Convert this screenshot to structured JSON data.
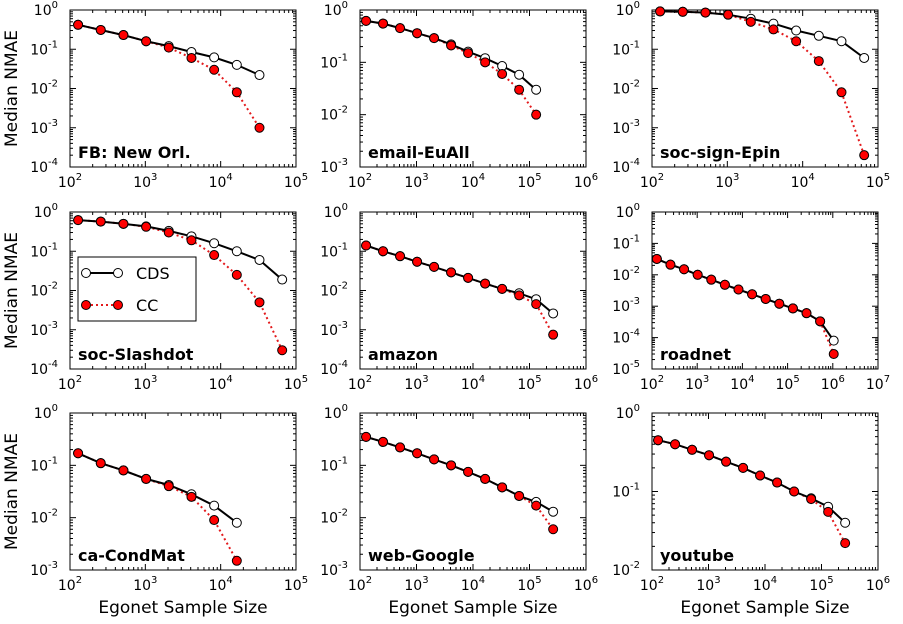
{
  "colors": {
    "cds": "#000000",
    "cc": "#e31a1c",
    "cds_marker": "#ffffff",
    "cc_marker": "#ff0000"
  },
  "legend": {
    "items": [
      {
        "key": "cds",
        "label": "CDS"
      },
      {
        "key": "cc",
        "label": "CC"
      }
    ],
    "location": "panel 4, center-left"
  },
  "chart_data": [
    {
      "type": "line",
      "title": "FB: New Orl.",
      "xlabel": "",
      "ylabel": "Median NMAE",
      "xscale": "log",
      "yscale": "log",
      "xlim": [
        100,
        100000
      ],
      "ylim": [
        0.0001,
        1
      ],
      "xtick_exps": [
        2,
        3,
        4,
        5
      ],
      "ytick_exps": [
        -4,
        -3,
        -2,
        -1,
        0
      ],
      "series": [
        {
          "name": "CDS",
          "x": [
            128,
            256,
            512,
            1024,
            2048,
            4096,
            8192,
            16384,
            32768
          ],
          "y": [
            0.42,
            0.31,
            0.23,
            0.16,
            0.12,
            0.085,
            0.062,
            0.04,
            0.022
          ]
        },
        {
          "name": "CC",
          "x": [
            128,
            256,
            512,
            1024,
            2048,
            4096,
            8192,
            16384,
            32768
          ],
          "y": [
            0.42,
            0.31,
            0.23,
            0.16,
            0.11,
            0.06,
            0.03,
            0.008,
            0.001
          ]
        }
      ]
    },
    {
      "type": "line",
      "title": "email-EuAll",
      "xlabel": "",
      "ylabel": "",
      "xscale": "log",
      "yscale": "log",
      "xlim": [
        100,
        1000000
      ],
      "ylim": [
        0.001,
        1
      ],
      "xtick_exps": [
        2,
        3,
        4,
        5,
        6
      ],
      "ytick_exps": [
        -3,
        -2,
        -1,
        0
      ],
      "series": [
        {
          "name": "CDS",
          "x": [
            128,
            256,
            512,
            1024,
            2048,
            4096,
            8192,
            16384,
            32768,
            65536,
            131072
          ],
          "y": [
            0.62,
            0.55,
            0.45,
            0.36,
            0.29,
            0.22,
            0.16,
            0.12,
            0.085,
            0.058,
            0.03
          ]
        },
        {
          "name": "CC",
          "x": [
            128,
            256,
            512,
            1024,
            2048,
            4096,
            8192,
            16384,
            32768,
            65536,
            131072
          ],
          "y": [
            0.62,
            0.55,
            0.45,
            0.36,
            0.29,
            0.21,
            0.15,
            0.1,
            0.06,
            0.03,
            0.01
          ]
        }
      ]
    },
    {
      "type": "line",
      "title": "soc-sign-Epin",
      "xlabel": "",
      "ylabel": "",
      "xscale": "log",
      "yscale": "log",
      "xlim": [
        100,
        100000
      ],
      "ylim": [
        0.0001,
        1
      ],
      "xtick_exps": [
        2,
        3,
        4,
        5
      ],
      "ytick_exps": [
        -4,
        -3,
        -2,
        -1,
        0
      ],
      "series": [
        {
          "name": "CDS",
          "x": [
            128,
            256,
            512,
            1024,
            2048,
            4096,
            8192,
            16384,
            32768,
            65536
          ],
          "y": [
            0.92,
            0.9,
            0.86,
            0.76,
            0.6,
            0.45,
            0.3,
            0.22,
            0.16,
            0.06
          ]
        },
        {
          "name": "CC",
          "x": [
            128,
            256,
            512,
            1024,
            2048,
            4096,
            8192,
            16384,
            32768,
            65536
          ],
          "y": [
            0.92,
            0.9,
            0.86,
            0.76,
            0.5,
            0.32,
            0.16,
            0.05,
            0.008,
            0.0002
          ]
        }
      ]
    },
    {
      "type": "line",
      "title": "soc-Slashdot",
      "xlabel": "",
      "ylabel": "Median NMAE",
      "xscale": "log",
      "yscale": "log",
      "xlim": [
        100,
        100000
      ],
      "ylim": [
        0.0001,
        1
      ],
      "xtick_exps": [
        2,
        3,
        4,
        5
      ],
      "ytick_exps": [
        -4,
        -3,
        -2,
        -1,
        0
      ],
      "series": [
        {
          "name": "CDS",
          "x": [
            128,
            256,
            512,
            1024,
            2048,
            4096,
            8192,
            16384,
            32768,
            65536
          ],
          "y": [
            0.62,
            0.57,
            0.5,
            0.43,
            0.33,
            0.24,
            0.16,
            0.1,
            0.06,
            0.019
          ]
        },
        {
          "name": "CC",
          "x": [
            128,
            256,
            512,
            1024,
            2048,
            4096,
            8192,
            16384,
            32768,
            65536
          ],
          "y": [
            0.62,
            0.57,
            0.5,
            0.42,
            0.3,
            0.19,
            0.08,
            0.025,
            0.005,
            0.0003
          ]
        }
      ]
    },
    {
      "type": "line",
      "title": "amazon",
      "xlabel": "",
      "ylabel": "",
      "xscale": "log",
      "yscale": "log",
      "xlim": [
        100,
        1000000
      ],
      "ylim": [
        0.0001,
        1
      ],
      "xtick_exps": [
        2,
        3,
        4,
        5,
        6
      ],
      "ytick_exps": [
        -4,
        -3,
        -2,
        -1,
        0
      ],
      "series": [
        {
          "name": "CDS",
          "x": [
            128,
            256,
            512,
            1024,
            2048,
            4096,
            8192,
            16384,
            32768,
            65536,
            131072,
            262144
          ],
          "y": [
            0.14,
            0.1,
            0.075,
            0.054,
            0.04,
            0.029,
            0.021,
            0.015,
            0.011,
            0.0085,
            0.006,
            0.0026
          ]
        },
        {
          "name": "CC",
          "x": [
            128,
            256,
            512,
            1024,
            2048,
            4096,
            8192,
            16384,
            32768,
            65536,
            131072,
            262144
          ],
          "y": [
            0.14,
            0.1,
            0.075,
            0.054,
            0.04,
            0.029,
            0.021,
            0.015,
            0.011,
            0.0075,
            0.0045,
            0.00075
          ]
        }
      ]
    },
    {
      "type": "line",
      "title": "roadnet",
      "xlabel": "",
      "ylabel": "",
      "xscale": "log",
      "yscale": "log",
      "xlim": [
        100,
        10000000
      ],
      "ylim": [
        1e-05,
        1
      ],
      "xtick_exps": [
        2,
        3,
        4,
        5,
        6,
        7
      ],
      "ytick_exps": [
        -5,
        -4,
        -3,
        -2,
        -1,
        0
      ],
      "series": [
        {
          "name": "CDS",
          "x": [
            128,
            256,
            512,
            1024,
            2048,
            4096,
            8192,
            16384,
            32768,
            65536,
            131072,
            262144,
            524288,
            1048576
          ],
          "y": [
            0.032,
            0.021,
            0.015,
            0.01,
            0.007,
            0.0048,
            0.0034,
            0.0024,
            0.0017,
            0.0012,
            0.00085,
            0.0006,
            0.00033,
            8e-05
          ]
        },
        {
          "name": "CC",
          "x": [
            128,
            256,
            512,
            1024,
            2048,
            4096,
            8192,
            16384,
            32768,
            65536,
            131072,
            262144,
            524288,
            1048576
          ],
          "y": [
            0.032,
            0.021,
            0.015,
            0.01,
            0.007,
            0.0048,
            0.0034,
            0.0024,
            0.0017,
            0.0012,
            0.00085,
            0.0006,
            0.00033,
            3e-05
          ]
        }
      ]
    },
    {
      "type": "line",
      "title": "ca-CondMat",
      "xlabel": "Egonet Sample Size",
      "ylabel": "Median NMAE",
      "xscale": "log",
      "yscale": "log",
      "xlim": [
        100,
        100000
      ],
      "ylim": [
        0.001,
        1
      ],
      "xtick_exps": [
        2,
        3,
        4,
        5
      ],
      "ytick_exps": [
        -3,
        -2,
        -1,
        0
      ],
      "series": [
        {
          "name": "CDS",
          "x": [
            128,
            256,
            512,
            1024,
            2048,
            4096,
            8192,
            16384
          ],
          "y": [
            0.17,
            0.11,
            0.08,
            0.055,
            0.042,
            0.028,
            0.017,
            0.008
          ]
        },
        {
          "name": "CC",
          "x": [
            128,
            256,
            512,
            1024,
            2048,
            4096,
            8192,
            16384
          ],
          "y": [
            0.17,
            0.11,
            0.08,
            0.055,
            0.04,
            0.025,
            0.009,
            0.0015
          ]
        }
      ]
    },
    {
      "type": "line",
      "title": "web-Google",
      "xlabel": "Egonet Sample Size",
      "ylabel": "",
      "xscale": "log",
      "yscale": "log",
      "xlim": [
        100,
        1000000
      ],
      "ylim": [
        0.001,
        1
      ],
      "xtick_exps": [
        2,
        3,
        4,
        5,
        6
      ],
      "ytick_exps": [
        -3,
        -2,
        -1,
        0
      ],
      "series": [
        {
          "name": "CDS",
          "x": [
            128,
            256,
            512,
            1024,
            2048,
            4096,
            8192,
            16384,
            32768,
            65536,
            131072,
            262144
          ],
          "y": [
            0.35,
            0.28,
            0.22,
            0.17,
            0.13,
            0.1,
            0.075,
            0.055,
            0.038,
            0.026,
            0.02,
            0.013
          ]
        },
        {
          "name": "CC",
          "x": [
            128,
            256,
            512,
            1024,
            2048,
            4096,
            8192,
            16384,
            32768,
            65536,
            131072,
            262144
          ],
          "y": [
            0.35,
            0.28,
            0.22,
            0.17,
            0.13,
            0.1,
            0.075,
            0.055,
            0.038,
            0.026,
            0.017,
            0.006
          ]
        }
      ]
    },
    {
      "type": "line",
      "title": "youtube",
      "xlabel": "Egonet Sample Size",
      "ylabel": "",
      "xscale": "log",
      "yscale": "log",
      "xlim": [
        100,
        1000000
      ],
      "ylim": [
        0.01,
        1
      ],
      "xtick_exps": [
        2,
        3,
        4,
        5,
        6
      ],
      "ytick_exps": [
        -2,
        -1,
        0
      ],
      "series": [
        {
          "name": "CDS",
          "x": [
            128,
            256,
            512,
            1024,
            2048,
            4096,
            8192,
            16384,
            32768,
            65536,
            131072,
            262144
          ],
          "y": [
            0.45,
            0.4,
            0.34,
            0.29,
            0.24,
            0.2,
            0.16,
            0.13,
            0.1,
            0.082,
            0.064,
            0.04
          ]
        },
        {
          "name": "CC",
          "x": [
            128,
            256,
            512,
            1024,
            2048,
            4096,
            8192,
            16384,
            32768,
            65536,
            131072,
            262144
          ],
          "y": [
            0.45,
            0.4,
            0.34,
            0.29,
            0.24,
            0.2,
            0.16,
            0.13,
            0.1,
            0.08,
            0.055,
            0.022
          ]
        }
      ]
    }
  ]
}
